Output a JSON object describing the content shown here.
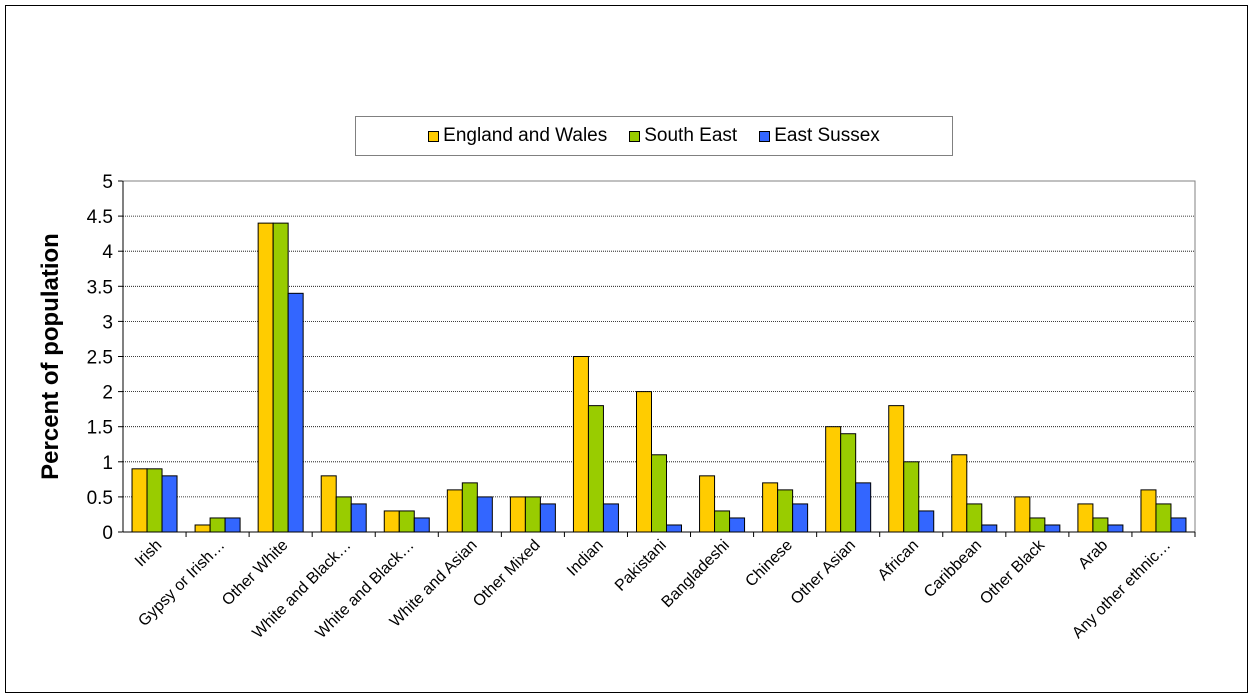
{
  "chart_data": {
    "type": "bar",
    "title": "",
    "xlabel": "",
    "ylabel": "Percent of population",
    "ylim": [
      0,
      5
    ],
    "yticks": [
      "0",
      "0.5",
      "1",
      "1.5",
      "2",
      "2.5",
      "3",
      "3.5",
      "4",
      "4.5",
      "5"
    ],
    "grid": true,
    "legend_position": "top-center",
    "categories": [
      "Irish",
      "Gypsy or Irish…",
      "Other White",
      "White and Black…",
      "White and Black…",
      "White and Asian",
      "Other Mixed",
      "Indian",
      "Pakistani",
      "Bangladeshi",
      "Chinese",
      "Other Asian",
      "African",
      "Caribbean",
      "Other Black",
      "Arab",
      "Any other ethnic…"
    ],
    "series": [
      {
        "name": "England and Wales",
        "color": "#FFCC00",
        "values": [
          0.9,
          0.1,
          4.4,
          0.8,
          0.3,
          0.6,
          0.5,
          2.5,
          2.0,
          0.8,
          0.7,
          1.5,
          1.8,
          1.1,
          0.5,
          0.4,
          0.6
        ]
      },
      {
        "name": "South East",
        "color": "#99CC00",
        "values": [
          0.9,
          0.2,
          4.4,
          0.5,
          0.3,
          0.7,
          0.5,
          1.8,
          1.1,
          0.3,
          0.6,
          1.4,
          1.0,
          0.4,
          0.2,
          0.2,
          0.4
        ]
      },
      {
        "name": "East Sussex",
        "color": "#3366FF",
        "values": [
          0.8,
          0.2,
          3.4,
          0.4,
          0.2,
          0.5,
          0.4,
          0.4,
          0.1,
          0.2,
          0.4,
          0.7,
          0.3,
          0.1,
          0.1,
          0.1,
          0.2
        ]
      }
    ]
  }
}
